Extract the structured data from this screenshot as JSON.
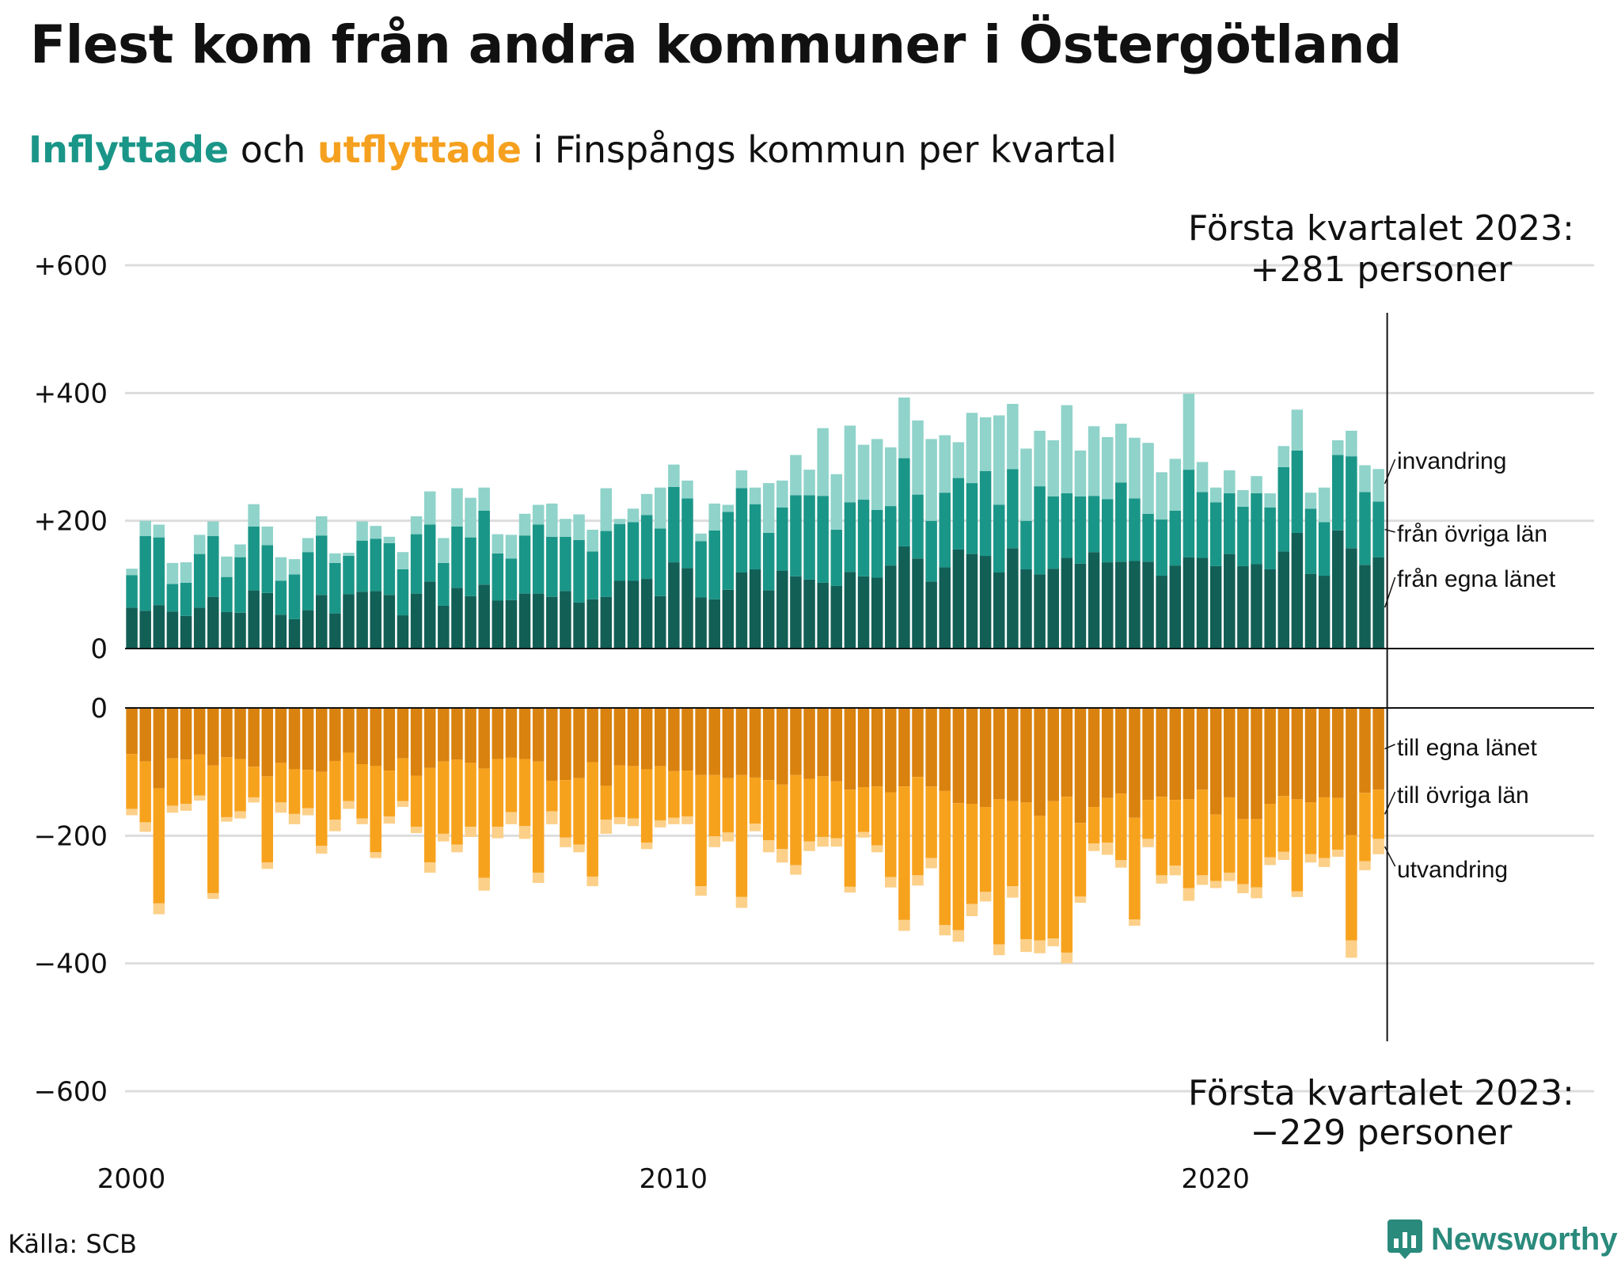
{
  "title": "Flest kom från andra kommuner i Östergötland",
  "subtitle": {
    "in_word": "Inflyttade",
    "mid": " och ",
    "out_word": "utflyttade",
    "rest": " i Finspångs kommun per kvartal"
  },
  "source": "Källa: SCB",
  "brand": "Newsworthy",
  "colors": {
    "in_own_county": "#125f56",
    "in_other_counties": "#1a9688",
    "in_immigration": "#8fd3ca",
    "out_own_county": "#d9820f",
    "out_other_counties": "#f7a21d",
    "out_emigration": "#fcd089",
    "gridline": "#dddddd",
    "axis": "#111111"
  },
  "chart_data": {
    "type": "bar",
    "stacked": true,
    "x_start": "2000 Q1",
    "x_ticks": [
      "2000",
      "2010",
      "2020"
    ],
    "y_ticks_top": [
      "+600",
      "+400",
      "+200",
      "0"
    ],
    "y_ticks_bottom": [
      "0",
      "−200",
      "−400",
      "−600"
    ],
    "ylim_top": [
      0,
      600
    ],
    "ylim_bottom": [
      -600,
      0
    ],
    "grid": true,
    "annotation_top": {
      "line1": "Första kvartalet 2023:",
      "line2": "+281 personer"
    },
    "annotation_bottom": {
      "line1": "Första kvartalet 2023:",
      "line2": "−229 personer"
    },
    "series_in": [
      {
        "name": "från egna länet",
        "values": [
          64,
          59,
          68,
          58,
          51,
          64,
          81,
          57,
          56,
          91,
          87,
          53,
          46,
          60,
          84,
          55,
          85,
          89,
          90,
          84,
          52,
          86,
          105,
          67,
          95,
          82,
          100,
          75,
          76,
          86,
          86,
          81,
          90,
          72,
          77,
          81,
          106,
          106,
          109,
          82,
          135,
          126,
          80,
          77,
          92,
          119,
          124,
          91,
          122,
          113,
          108,
          103,
          98,
          120,
          113,
          111,
          130,
          160,
          141,
          105,
          127,
          155,
          148,
          145,
          119,
          157,
          124,
          116,
          125,
          142,
          133,
          151,
          135,
          136,
          137,
          136,
          114,
          130,
          143,
          142,
          129,
          148,
          129,
          132,
          124,
          152,
          181,
          117,
          114,
          185,
          157,
          131,
          143
        ]
      },
      {
        "name": "från övriga län",
        "values": [
          51,
          117,
          106,
          43,
          52,
          84,
          95,
          55,
          87,
          100,
          75,
          53,
          70,
          91,
          93,
          79,
          60,
          80,
          82,
          81,
          72,
          93,
          89,
          67,
          96,
          92,
          116,
          74,
          65,
          91,
          108,
          94,
          85,
          98,
          75,
          103,
          89,
          92,
          100,
          106,
          118,
          109,
          88,
          108,
          122,
          132,
          102,
          90,
          99,
          127,
          132,
          136,
          88,
          109,
          120,
          106,
          93,
          138,
          100,
          95,
          117,
          112,
          111,
          133,
          106,
          124,
          76,
          138,
          113,
          101,
          105,
          88,
          99,
          124,
          98,
          75,
          88,
          86,
          137,
          103,
          100,
          95,
          93,
          111,
          97,
          132,
          129,
          102,
          84,
          118,
          144,
          114,
          87
        ]
      },
      {
        "name": "invandring",
        "values": [
          10,
          24,
          20,
          33,
          32,
          30,
          23,
          32,
          20,
          35,
          29,
          37,
          24,
          22,
          30,
          15,
          5,
          30,
          20,
          10,
          27,
          28,
          52,
          39,
          60,
          62,
          36,
          30,
          37,
          34,
          31,
          52,
          28,
          40,
          34,
          67,
          8,
          21,
          33,
          64,
          35,
          28,
          12,
          42,
          11,
          28,
          26,
          78,
          42,
          63,
          40,
          106,
          87,
          120,
          86,
          111,
          92,
          95,
          116,
          128,
          90,
          56,
          110,
          84,
          140,
          102,
          113,
          87,
          88,
          138,
          72,
          109,
          97,
          92,
          95,
          111,
          74,
          81,
          119,
          47,
          23,
          36,
          26,
          27,
          22,
          33,
          64,
          25,
          54,
          23,
          40,
          42,
          51
        ]
      }
    ],
    "series_out": [
      {
        "name": "till egna länet",
        "values": [
          -72,
          -84,
          -126,
          -79,
          -81,
          -73,
          -90,
          -77,
          -80,
          -92,
          -107,
          -86,
          -96,
          -97,
          -100,
          -83,
          -70,
          -88,
          -91,
          -98,
          -79,
          -106,
          -94,
          -84,
          -81,
          -86,
          -95,
          -80,
          -78,
          -80,
          -84,
          -114,
          -113,
          -110,
          -85,
          -122,
          -90,
          -91,
          -96,
          -91,
          -99,
          -98,
          -105,
          -105,
          -110,
          -105,
          -109,
          -113,
          -120,
          -105,
          -111,
          -107,
          -115,
          -128,
          -124,
          -123,
          -132,
          -123,
          -108,
          -123,
          -130,
          -149,
          -150,
          -155,
          -143,
          -146,
          -148,
          -169,
          -146,
          -139,
          -180,
          -155,
          -141,
          -134,
          -172,
          -144,
          -139,
          -144,
          -143,
          -128,
          -167,
          -140,
          -174,
          -174,
          -150,
          -138,
          -143,
          -148,
          -140,
          -141,
          -199,
          -133,
          -128
        ]
      },
      {
        "name": "till övriga län",
        "values": [
          -86,
          -95,
          -180,
          -74,
          -69,
          -64,
          -200,
          -94,
          -82,
          -48,
          -135,
          -62,
          -70,
          -60,
          -116,
          -92,
          -76,
          -85,
          -135,
          -72,
          -67,
          -80,
          -148,
          -113,
          -133,
          -100,
          -171,
          -106,
          -85,
          -105,
          -174,
          -48,
          -90,
          -104,
          -179,
          -53,
          -81,
          -82,
          -115,
          -85,
          -73,
          -72,
          -174,
          -96,
          -85,
          -191,
          -72,
          -94,
          -101,
          -141,
          -98,
          -95,
          -89,
          -152,
          -70,
          -92,
          -133,
          -209,
          -154,
          -112,
          -210,
          -199,
          -157,
          -133,
          -227,
          -133,
          -214,
          -195,
          -215,
          -244,
          -115,
          -57,
          -70,
          -104,
          -159,
          -61,
          -123,
          -103,
          -139,
          -134,
          -104,
          -118,
          -102,
          -107,
          -84,
          -87,
          -144,
          -81,
          -95,
          -81,
          -165,
          -107,
          -77
        ]
      },
      {
        "name": "utvandring",
        "values": [
          -10,
          -15,
          -17,
          -11,
          -11,
          -8,
          -9,
          -7,
          -11,
          -8,
          -10,
          -16,
          -16,
          -11,
          -12,
          -18,
          -12,
          -9,
          -9,
          -11,
          -9,
          -10,
          -16,
          -12,
          -12,
          -16,
          -20,
          -18,
          -19,
          -20,
          -16,
          -20,
          -15,
          -12,
          -15,
          -22,
          -11,
          -12,
          -10,
          -11,
          -10,
          -12,
          -15,
          -17,
          -14,
          -17,
          -12,
          -19,
          -21,
          -15,
          -15,
          -15,
          -13,
          -9,
          -9,
          -11,
          -16,
          -17,
          -16,
          -16,
          -16,
          -18,
          -19,
          -15,
          -17,
          -18,
          -20,
          -20,
          -12,
          -17,
          -10,
          -12,
          -19,
          -12,
          -10,
          -13,
          -13,
          -15,
          -20,
          -15,
          -11,
          -13,
          -14,
          -17,
          -12,
          -13,
          -9,
          -13,
          -14,
          -11,
          -27,
          -14,
          -24
        ]
      }
    ]
  }
}
